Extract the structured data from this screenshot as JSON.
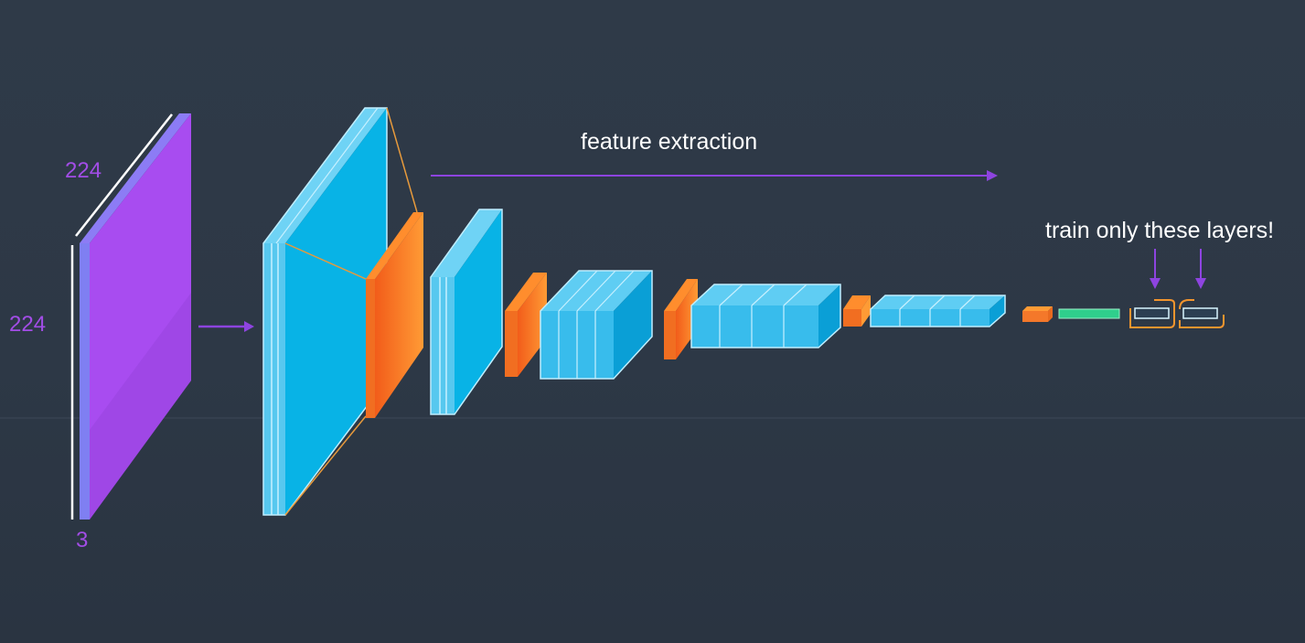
{
  "labels": {
    "feature_extraction": "feature extraction",
    "train_only": "train only these layers!",
    "input_width": "224",
    "input_height": "224",
    "input_depth": "3"
  },
  "colors": {
    "background": "#2e3947",
    "input_layer": "#a855f7",
    "conv_layer": "#0db4e6",
    "conv_layer_side": "#0a92c4",
    "pool_layer": "#f47a22",
    "dense_layer": "#2fcf8c",
    "trainable_outline": "#f2952e",
    "arrow": "#8e44e0",
    "dimension_text": "#a24de6",
    "caption_text": "#ffffff"
  },
  "diagram": {
    "input": {
      "width": 224,
      "height": 224,
      "depth": 3
    },
    "sections": [
      "feature extraction",
      "train only these layers!"
    ]
  }
}
